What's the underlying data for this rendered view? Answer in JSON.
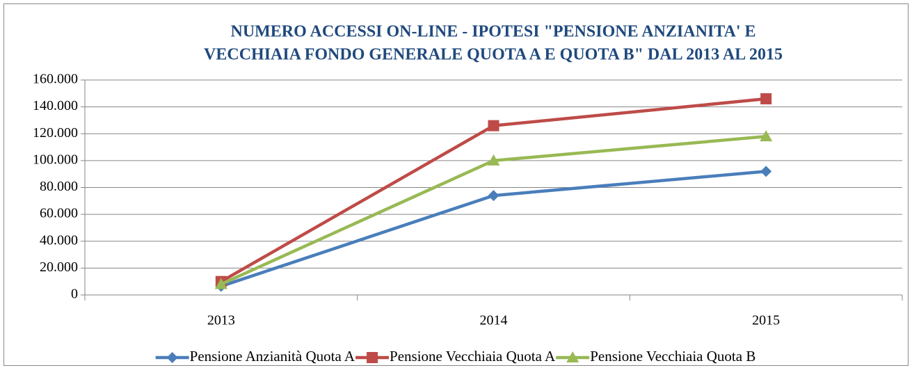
{
  "chart_data": {
    "type": "line",
    "title": [
      "NUMERO ACCESSI ON-LINE - IPOTESI \"PENSIONE ANZIANITA' E",
      "VECCHIAIA FONDO GENERALE QUOTA A E QUOTA B\" DAL 2013 AL 2015"
    ],
    "categories": [
      "2013",
      "2014",
      "2015"
    ],
    "series": [
      {
        "name": "Pensione Anzianità Quota A",
        "color": "#4a7ebb",
        "marker": "diamond",
        "values": [
          6500,
          74000,
          92000
        ]
      },
      {
        "name": "Pensione Vecchiaia Quota A",
        "color": "#be4b48",
        "marker": "square",
        "values": [
          10000,
          126000,
          146000
        ]
      },
      {
        "name": "Pensione Vecchiaia Quota B",
        "color": "#98b954",
        "marker": "triangle",
        "values": [
          8000,
          100000,
          118000
        ]
      }
    ],
    "ylim": [
      0,
      160000
    ],
    "yticks": [
      0,
      {
        "value": 20000,
        "label": "20.000"
      },
      {
        "value": 40000,
        "label": "40.000"
      },
      {
        "value": 60000,
        "label": "60.000"
      },
      {
        "value": 80000,
        "label": "80.000"
      },
      {
        "value": 100000,
        "label": "100.000"
      },
      {
        "value": 120000,
        "label": "120.000"
      },
      {
        "value": 140000,
        "label": "140.000"
      },
      {
        "value": 160000,
        "label": "160.000"
      }
    ],
    "grid": true,
    "legend": "bottom"
  }
}
